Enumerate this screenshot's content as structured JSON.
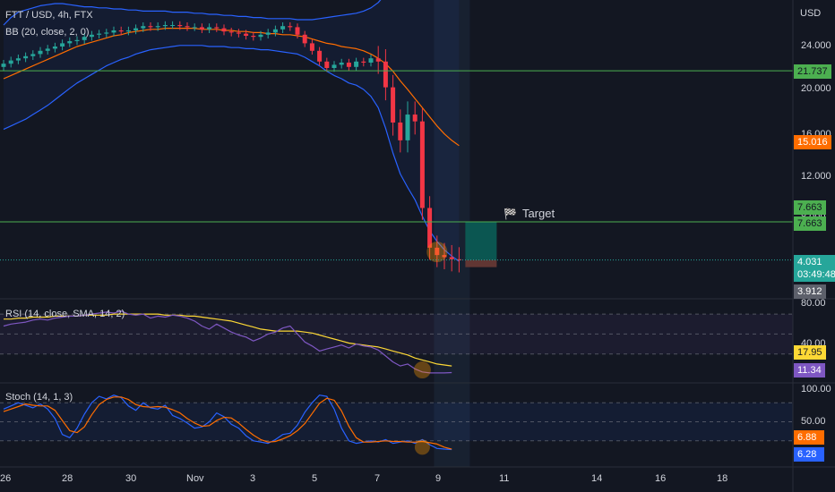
{
  "header": {
    "symbol": "FTT / USD, 4h, FTX",
    "bb_indicator": "BB (20, close, 2, 0)",
    "rsi_indicator": "RSI (14, close, SMA, 14, 2)",
    "stoch_indicator": "Stoch (14, 1, 3)"
  },
  "price_axis": {
    "currency": "USD",
    "ticks": [
      "24.000",
      "20.000",
      "16.000",
      "12.000",
      "8.000",
      "4.000"
    ]
  },
  "rsi_axis": {
    "ticks": [
      "80.00",
      "40.00"
    ]
  },
  "stoch_axis": {
    "ticks": [
      "100.00",
      "50.00"
    ]
  },
  "time_axis": {
    "ticks": [
      "26",
      "28",
      "30",
      "Nov",
      "3",
      "5",
      "7",
      "9",
      "11",
      "14",
      "16",
      "18"
    ]
  },
  "labels": {
    "target": "Target",
    "level_upper": "21.737",
    "bb_basis": "15.016",
    "target_level_a": "7.663",
    "target_level_b": "7.663",
    "last_price": "4.031",
    "countdown": "03:49:48",
    "bb_lower": "3.912",
    "rsi_ma": "17.95",
    "rsi_value": "11.34",
    "stoch_d": "6.88",
    "stoch_k": "6.28"
  },
  "colors": {
    "background": "#131722",
    "grid": "#2a2e39",
    "up_candle": "#26a69a",
    "down_candle": "#f23645",
    "bb_band": "#2962ff",
    "bb_basis": "#ff6d00",
    "level_line": "#4caf50",
    "last_price_line": "#26a69a",
    "rsi_line": "#7e57c2",
    "rsi_ma_line": "#fdd835",
    "stoch_k_line": "#2962ff",
    "stoch_d_line": "#ff6d00",
    "target_zone": "#0b5d57",
    "stop_zone": "#6a3a35"
  },
  "chart_data": [
    {
      "type": "candlestick",
      "title": "FTT / USD, 4h, FTX",
      "currency": "USD",
      "x_axis_ticks": [
        "26",
        "28",
        "30",
        "Nov",
        "3",
        "5",
        "7",
        "9",
        "11",
        "14",
        "16",
        "18"
      ],
      "ylim": [
        2,
        30
      ],
      "y_ticks": [
        4,
        8,
        12,
        16,
        20,
        24
      ],
      "grid": false,
      "close": [
        22.4,
        22.7,
        22.9,
        23.1,
        23.3,
        23.6,
        23.8,
        24.0,
        24.3,
        24.5,
        24.6,
        24.9,
        25.1,
        25.2,
        25.3,
        25.5,
        25.4,
        25.5,
        25.7,
        25.9,
        25.8,
        25.9,
        26.0,
        26.0,
        25.9,
        25.8,
        25.8,
        25.6,
        25.8,
        25.7,
        25.4,
        25.3,
        25.2,
        25.0,
        24.9,
        25.1,
        25.3,
        25.6,
        25.9,
        25.8,
        25.1,
        24.3,
        23.6,
        22.6,
        22.0,
        22.3,
        22.5,
        22.1,
        22.6,
        22.5,
        22.9,
        22.6,
        20.2,
        17.1,
        15.5,
        17.8,
        17.2,
        9.0,
        5.2,
        4.5,
        4.3,
        4.1,
        4.0
      ],
      "bb_upper": [
        26.0,
        26.7,
        27.2,
        27.4,
        27.6,
        27.8,
        27.9,
        28.0,
        28.0,
        27.9,
        27.8,
        27.7,
        27.7,
        27.6,
        27.6,
        27.5,
        27.5,
        27.4,
        27.4,
        27.3,
        27.3,
        27.3,
        27.3,
        27.2,
        27.2,
        27.2,
        27.1,
        27.1,
        27.0,
        27.0,
        26.9,
        26.9,
        26.8,
        26.8,
        26.7,
        26.7,
        26.6,
        26.6,
        26.6,
        26.6,
        26.5,
        26.5,
        26.5,
        26.6,
        26.7,
        26.8,
        26.9,
        27.0,
        27.1,
        27.3,
        27.6,
        28.1,
        28.9,
        29.6,
        30.0,
        30.3,
        30.6,
        31.0,
        31.2,
        31.4,
        31.5,
        31.6,
        31.6
      ],
      "bb_basis": [
        21.0,
        21.3,
        21.6,
        21.9,
        22.2,
        22.5,
        22.8,
        23.1,
        23.4,
        23.7,
        24.0,
        24.2,
        24.4,
        24.6,
        24.8,
        25.0,
        25.1,
        25.3,
        25.4,
        25.5,
        25.6,
        25.6,
        25.7,
        25.7,
        25.7,
        25.7,
        25.7,
        25.6,
        25.6,
        25.6,
        25.5,
        25.5,
        25.4,
        25.4,
        25.3,
        25.3,
        25.2,
        25.2,
        25.1,
        25.1,
        25.0,
        24.9,
        24.7,
        24.5,
        24.3,
        24.2,
        24.0,
        23.9,
        23.8,
        23.6,
        23.3,
        22.9,
        22.4,
        21.7,
        20.8,
        20.0,
        19.2,
        18.4,
        17.6,
        16.8,
        16.1,
        15.5,
        15.0
      ],
      "bb_lower": [
        16.5,
        16.8,
        17.1,
        17.4,
        17.8,
        18.2,
        18.6,
        19.1,
        19.6,
        20.1,
        20.6,
        21.0,
        21.4,
        21.8,
        22.2,
        22.5,
        22.8,
        23.0,
        23.3,
        23.5,
        23.7,
        23.8,
        23.9,
        24.0,
        24.1,
        24.1,
        24.1,
        24.1,
        24.0,
        24.0,
        24.0,
        23.9,
        23.9,
        23.8,
        23.8,
        23.7,
        23.7,
        23.6,
        23.5,
        23.4,
        23.3,
        23.0,
        22.6,
        22.2,
        21.7,
        21.3,
        21.0,
        20.6,
        20.4,
        20.0,
        19.4,
        18.4,
        16.6,
        14.3,
        12.3,
        11.0,
        9.8,
        8.2,
        6.8,
        5.8,
        5.0,
        4.4,
        3.9
      ],
      "horizontal_levels": [
        21.737,
        7.663
      ],
      "last_price": 4.031,
      "bb_basis_last": 15.016,
      "bb_lower_last": 3.912,
      "target": 7.663
    },
    {
      "type": "line",
      "title": "RSI (14, close, SMA, 14, 2)",
      "ylim": [
        0,
        100
      ],
      "y_ticks": [
        80,
        40
      ],
      "bands": [
        70,
        50,
        30
      ],
      "series": [
        {
          "name": "RSI",
          "values": [
            58,
            60,
            61,
            62,
            64,
            65,
            64,
            66,
            67,
            68,
            68,
            69,
            70,
            71,
            72,
            71,
            73,
            70,
            69,
            70,
            66,
            68,
            67,
            69,
            68,
            66,
            63,
            58,
            55,
            60,
            56,
            52,
            49,
            47,
            43,
            46,
            50,
            52,
            56,
            58,
            50,
            42,
            38,
            33,
            35,
            37,
            39,
            36,
            40,
            38,
            37,
            34,
            28,
            22,
            18,
            20,
            15,
            12,
            11,
            11,
            11,
            11.34
          ]
        },
        {
          "name": "RSI MA",
          "values": [
            65,
            65,
            66,
            66,
            67,
            67,
            67,
            68,
            68,
            68,
            68,
            69,
            69,
            69,
            69,
            70,
            70,
            70,
            70,
            70,
            70,
            70,
            69,
            69,
            69,
            68,
            68,
            67,
            66,
            65,
            64,
            63,
            61,
            59,
            57,
            55,
            54,
            53,
            53,
            53,
            53,
            52,
            51,
            49,
            47,
            45,
            43,
            41,
            40,
            39,
            38,
            37,
            35,
            33,
            31,
            29,
            26,
            24,
            22,
            20,
            19,
            17.95
          ]
        }
      ]
    },
    {
      "type": "line",
      "title": "Stoch (14, 1, 3)",
      "ylim": [
        0,
        100
      ],
      "y_ticks": [
        100,
        50
      ],
      "bands": [
        80,
        20
      ],
      "series": [
        {
          "name": "%K",
          "values": [
            70,
            75,
            80,
            76,
            72,
            78,
            70,
            55,
            30,
            25,
            40,
            62,
            80,
            90,
            86,
            92,
            88,
            75,
            68,
            80,
            72,
            70,
            76,
            60,
            55,
            48,
            40,
            42,
            50,
            64,
            58,
            46,
            40,
            28,
            20,
            18,
            16,
            22,
            30,
            32,
            45,
            65,
            80,
            92,
            90,
            70,
            40,
            20,
            16,
            18,
            20,
            18,
            22,
            16,
            18,
            20,
            16,
            22,
            14,
            8,
            7,
            6.28
          ]
        },
        {
          "name": "%D",
          "values": [
            66,
            70,
            74,
            78,
            76,
            75,
            75,
            68,
            52,
            36,
            33,
            42,
            61,
            77,
            85,
            89,
            89,
            85,
            77,
            74,
            73,
            74,
            73,
            69,
            64,
            55,
            48,
            43,
            44,
            52,
            57,
            56,
            48,
            38,
            29,
            22,
            18,
            19,
            23,
            28,
            36,
            47,
            63,
            79,
            87,
            84,
            67,
            43,
            25,
            18,
            18,
            19,
            20,
            19,
            19,
            18,
            18,
            19,
            17,
            15,
            10,
            6.88
          ]
        }
      ]
    }
  ]
}
